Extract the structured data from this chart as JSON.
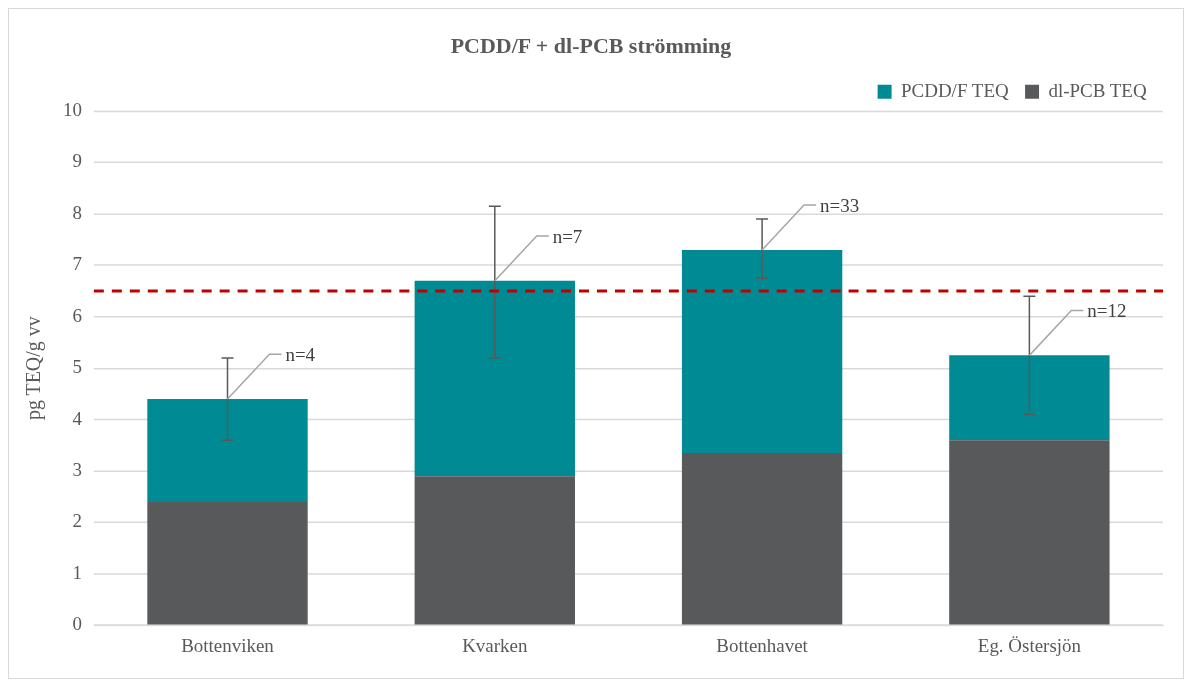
{
  "chart_data": {
    "type": "bar",
    "title": "PCDD/F + dl-PCB strömming",
    "ylabel": "pg TEQ/g vv",
    "categories": [
      "Bottenviken",
      "Kvarken",
      "Bottenhavet",
      "Eg. Östersjön"
    ],
    "stacked": true,
    "series": [
      {
        "name": "dl-PCB TEQ",
        "color": "#58595b",
        "values": [
          2.4,
          2.9,
          3.35,
          3.6
        ]
      },
      {
        "name": "PCDD/F TEQ",
        "color": "#008a94",
        "values": [
          2.0,
          3.8,
          3.95,
          1.65
        ],
        "errors": [
          [
            3.6,
            5.2
          ],
          [
            5.2,
            8.15
          ],
          [
            6.75,
            7.9
          ],
          [
            4.1,
            6.4
          ]
        ]
      }
    ],
    "ylim": [
      0,
      10
    ],
    "yticks": [
      0,
      1,
      2,
      3,
      4,
      5,
      6,
      7,
      8,
      9,
      10
    ],
    "grid": "y",
    "legend": "top right",
    "ref_lines": [
      {
        "axis": "y",
        "value": 6.5,
        "color": "#c00000",
        "line_style": "dashed"
      }
    ],
    "annotations": [
      {
        "text": "n=4",
        "x": "Bottenviken",
        "y": 4.4
      },
      {
        "text": "n=7",
        "x": "Kvarken",
        "y": 6.7
      },
      {
        "text": "n=33",
        "x": "Bottenhavet",
        "y": 7.3
      },
      {
        "text": "n=12",
        "x": "Eg. Östersjön",
        "y": 5.25
      }
    ]
  }
}
